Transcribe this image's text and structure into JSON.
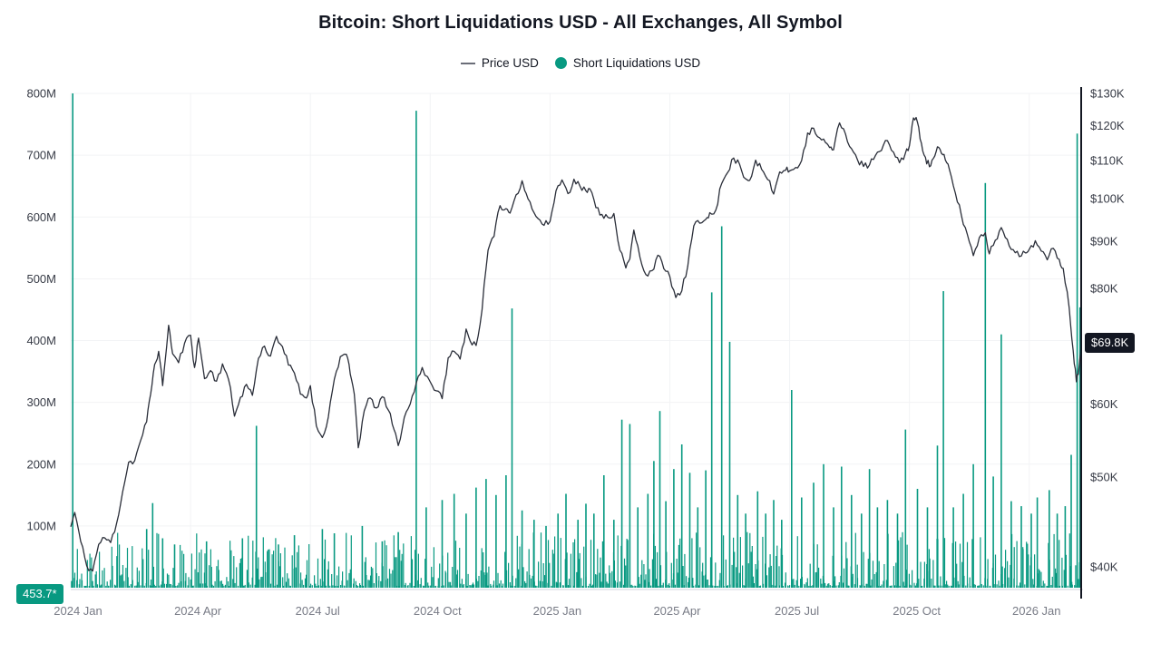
{
  "title": "Bitcoin: Short Liquidations USD - All Exchanges, All Symbol",
  "legend": {
    "items": [
      {
        "label": "Price USD",
        "glyph": "line",
        "color": "#6a6d78"
      },
      {
        "label": "Short Liquidations USD",
        "glyph": "dot",
        "color": "#089981"
      }
    ]
  },
  "badges": {
    "last_price": "$69.8K",
    "last_liquidation": "453.7*"
  },
  "colors": {
    "liquidation_green": "#089981",
    "price_line_dark": "#2a2e39",
    "badge_dark": "#131722",
    "axis_text": "#363a45",
    "x_text": "#787b86",
    "grid": "#f2f3f5"
  },
  "chart_data": {
    "type": "mixed",
    "title": "Bitcoin: Short Liquidations USD - All Exchanges, All Symbol",
    "x_axis": {
      "span_months": 25.3,
      "origin": "2024 Jan",
      "ticks": [
        {
          "m": 0,
          "label": "2024 Jan"
        },
        {
          "m": 3,
          "label": "2024 Apr"
        },
        {
          "m": 6,
          "label": "2024 Jul"
        },
        {
          "m": 9,
          "label": "2024 Oct"
        },
        {
          "m": 12,
          "label": "2025 Jan"
        },
        {
          "m": 15,
          "label": "2025 Apr"
        },
        {
          "m": 18,
          "label": "2025 Jul"
        },
        {
          "m": 21,
          "label": "2025 Oct"
        },
        {
          "m": 24,
          "label": "2026 Jan"
        }
      ]
    },
    "y_left": {
      "scale": "linear",
      "min": 0,
      "max": 800,
      "unit": "M USD",
      "ticks": [
        {
          "v": 100,
          "label": "100M"
        },
        {
          "v": 200,
          "label": "200M"
        },
        {
          "v": 300,
          "label": "300M"
        },
        {
          "v": 400,
          "label": "400M"
        },
        {
          "v": 500,
          "label": "500M"
        },
        {
          "v": 600,
          "label": "600M"
        },
        {
          "v": 700,
          "label": "700M"
        },
        {
          "v": 800,
          "label": "800M"
        }
      ]
    },
    "y_right": {
      "scale": "log",
      "min": 40,
      "max": 130,
      "unit": "K USD",
      "ticks": [
        {
          "v": 130,
          "label": "$130K"
        },
        {
          "v": 120,
          "label": "$120K"
        },
        {
          "v": 110,
          "label": "$110K"
        },
        {
          "v": 100,
          "label": "$100K"
        },
        {
          "v": 90,
          "label": "$90K"
        },
        {
          "v": 80,
          "label": "$80K"
        },
        {
          "v": 60,
          "label": "$60K"
        },
        {
          "v": 50,
          "label": "$50K"
        },
        {
          "v": 40,
          "label": "$40K"
        }
      ]
    },
    "series": [
      {
        "name": "Price USD",
        "type": "line",
        "axis": "right",
        "color": "#2a2e39",
        "last_value": 69.8,
        "last_value_label": "$69.8K",
        "points": [
          [
            0,
            44.2
          ],
          [
            0.1,
            45.8
          ],
          [
            0.25,
            42.6
          ],
          [
            0.4,
            40.1
          ],
          [
            0.55,
            39.6
          ],
          [
            0.7,
            42.3
          ],
          [
            0.85,
            43.0
          ],
          [
            1.0,
            42.5
          ],
          [
            1.15,
            44.6
          ],
          [
            1.3,
            48.2
          ],
          [
            1.45,
            51.9
          ],
          [
            1.6,
            52.1
          ],
          [
            1.75,
            54.8
          ],
          [
            1.9,
            57.4
          ],
          [
            2.0,
            61.5
          ],
          [
            2.1,
            66.2
          ],
          [
            2.2,
            68.4
          ],
          [
            2.3,
            62.8
          ],
          [
            2.45,
            73.0
          ],
          [
            2.55,
            68.0
          ],
          [
            2.7,
            66.5
          ],
          [
            2.85,
            69.8
          ],
          [
            3.0,
            71.2
          ],
          [
            3.1,
            65.7
          ],
          [
            3.2,
            70.7
          ],
          [
            3.35,
            63.9
          ],
          [
            3.5,
            65.2
          ],
          [
            3.65,
            63.5
          ],
          [
            3.8,
            66.3
          ],
          [
            3.95,
            63.8
          ],
          [
            4.1,
            58.2
          ],
          [
            4.25,
            61.0
          ],
          [
            4.4,
            63.0
          ],
          [
            4.55,
            61.3
          ],
          [
            4.7,
            67.2
          ],
          [
            4.85,
            69.3
          ],
          [
            5.0,
            67.6
          ],
          [
            5.15,
            71.0
          ],
          [
            5.3,
            69.2
          ],
          [
            5.45,
            66.1
          ],
          [
            5.6,
            64.8
          ],
          [
            5.75,
            61.5
          ],
          [
            5.9,
            60.9
          ],
          [
            6.0,
            62.8
          ],
          [
            6.15,
            56.8
          ],
          [
            6.3,
            55.2
          ],
          [
            6.45,
            58.1
          ],
          [
            6.6,
            63.8
          ],
          [
            6.75,
            67.5
          ],
          [
            6.9,
            67.9
          ],
          [
            7.0,
            64.6
          ],
          [
            7.1,
            61.5
          ],
          [
            7.2,
            53.8
          ],
          [
            7.35,
            59.0
          ],
          [
            7.5,
            60.9
          ],
          [
            7.65,
            59.4
          ],
          [
            7.8,
            61.1
          ],
          [
            7.95,
            59.1
          ],
          [
            8.1,
            56.2
          ],
          [
            8.2,
            54.1
          ],
          [
            8.35,
            58.0
          ],
          [
            8.5,
            60.0
          ],
          [
            8.65,
            63.2
          ],
          [
            8.8,
            65.7
          ],
          [
            9.0,
            63.4
          ],
          [
            9.15,
            62.0
          ],
          [
            9.3,
            60.8
          ],
          [
            9.45,
            67.3
          ],
          [
            9.6,
            68.4
          ],
          [
            9.75,
            67.1
          ],
          [
            9.9,
            72.3
          ],
          [
            10.0,
            70.2
          ],
          [
            10.15,
            69.4
          ],
          [
            10.3,
            75.9
          ],
          [
            10.45,
            88.0
          ],
          [
            10.6,
            91.1
          ],
          [
            10.75,
            98.3
          ],
          [
            10.9,
            97.6
          ],
          [
            11.0,
            96.5
          ],
          [
            11.15,
            101.0
          ],
          [
            11.3,
            104.6
          ],
          [
            11.4,
            101.4
          ],
          [
            11.55,
            97.5
          ],
          [
            11.7,
            95.2
          ],
          [
            11.85,
            93.6
          ],
          [
            12.0,
            94.5
          ],
          [
            12.15,
            102.0
          ],
          [
            12.3,
            104.8
          ],
          [
            12.45,
            101.3
          ],
          [
            12.6,
            105.0
          ],
          [
            12.75,
            103.2
          ],
          [
            12.9,
            102.0
          ],
          [
            13.0,
            102.5
          ],
          [
            13.15,
            97.8
          ],
          [
            13.3,
            96.2
          ],
          [
            13.45,
            95.5
          ],
          [
            13.6,
            96.4
          ],
          [
            13.75,
            88.0
          ],
          [
            13.9,
            84.2
          ],
          [
            14.0,
            86.1
          ],
          [
            14.1,
            92.5
          ],
          [
            14.25,
            86.5
          ],
          [
            14.4,
            82.8
          ],
          [
            14.55,
            83.6
          ],
          [
            14.7,
            86.9
          ],
          [
            14.85,
            84.0
          ],
          [
            15.0,
            82.4
          ],
          [
            15.15,
            78.2
          ],
          [
            15.3,
            79.5
          ],
          [
            15.45,
            84.6
          ],
          [
            15.6,
            93.5
          ],
          [
            15.75,
            94.1
          ],
          [
            15.9,
            95.0
          ],
          [
            16.0,
            96.6
          ],
          [
            16.15,
            97.2
          ],
          [
            16.3,
            103.9
          ],
          [
            16.45,
            106.8
          ],
          [
            16.6,
            110.7
          ],
          [
            16.75,
            108.9
          ],
          [
            16.9,
            105.1
          ],
          [
            17.0,
            104.7
          ],
          [
            17.15,
            110.1
          ],
          [
            17.3,
            107.6
          ],
          [
            17.45,
            104.9
          ],
          [
            17.6,
            101.2
          ],
          [
            17.75,
            106.9
          ],
          [
            17.9,
            107.4
          ],
          [
            18.0,
            107.2
          ],
          [
            18.15,
            108.1
          ],
          [
            18.3,
            110.0
          ],
          [
            18.45,
            117.8
          ],
          [
            18.6,
            119.2
          ],
          [
            18.75,
            116.4
          ],
          [
            18.9,
            115.0
          ],
          [
            19.0,
            113.6
          ],
          [
            19.1,
            113.0
          ],
          [
            19.25,
            120.8
          ],
          [
            19.4,
            117.5
          ],
          [
            19.55,
            113.3
          ],
          [
            19.7,
            110.2
          ],
          [
            19.85,
            108.4
          ],
          [
            20.0,
            108.8
          ],
          [
            20.15,
            111.4
          ],
          [
            20.3,
            112.8
          ],
          [
            20.45,
            115.6
          ],
          [
            20.6,
            112.3
          ],
          [
            20.75,
            109.4
          ],
          [
            20.9,
            112.1
          ],
          [
            21.0,
            114.2
          ],
          [
            21.1,
            122.3
          ],
          [
            21.2,
            121.0
          ],
          [
            21.3,
            114.8
          ],
          [
            21.4,
            110.9
          ],
          [
            21.5,
            108.3
          ],
          [
            21.6,
            110.6
          ],
          [
            21.7,
            113.8
          ],
          [
            21.8,
            112.0
          ],
          [
            21.9,
            110.1
          ],
          [
            22.0,
            107.6
          ],
          [
            22.15,
            101.4
          ],
          [
            22.3,
            96.0
          ],
          [
            22.45,
            91.5
          ],
          [
            22.6,
            86.8
          ],
          [
            22.75,
            90.8
          ],
          [
            22.9,
            91.9
          ],
          [
            23.0,
            87.2
          ],
          [
            23.15,
            90.2
          ],
          [
            23.3,
            93.1
          ],
          [
            23.45,
            90.4
          ],
          [
            23.6,
            88.1
          ],
          [
            23.75,
            86.6
          ],
          [
            23.9,
            87.4
          ],
          [
            24.0,
            88.2
          ],
          [
            24.15,
            90.1
          ],
          [
            24.3,
            87.8
          ],
          [
            24.45,
            85.9
          ],
          [
            24.6,
            88.4
          ],
          [
            24.75,
            86.0
          ],
          [
            24.85,
            84.1
          ],
          [
            25.0,
            76.2
          ],
          [
            25.1,
            68.5
          ],
          [
            25.18,
            63.4
          ],
          [
            25.25,
            66.0
          ],
          [
            25.3,
            69.8
          ]
        ]
      },
      {
        "name": "Short Liquidations USD",
        "type": "bar",
        "axis": "left",
        "color": "#089981",
        "last_value": 453.7,
        "last_value_label": "453.7*",
        "spikes": [
          [
            0.05,
            805
          ],
          [
            1.9,
            95
          ],
          [
            2.05,
            137
          ],
          [
            2.3,
            80
          ],
          [
            2.6,
            70
          ],
          [
            3.4,
            75
          ],
          [
            4.3,
            80
          ],
          [
            4.65,
            262
          ],
          [
            5.2,
            70
          ],
          [
            5.6,
            85
          ],
          [
            6.3,
            95
          ],
          [
            6.6,
            88
          ],
          [
            7.3,
            100
          ],
          [
            7.8,
            75
          ],
          [
            8.2,
            90
          ],
          [
            8.65,
            772
          ],
          [
            8.9,
            130
          ],
          [
            9.3,
            142
          ],
          [
            9.6,
            152
          ],
          [
            9.9,
            120
          ],
          [
            10.15,
            162
          ],
          [
            10.4,
            176
          ],
          [
            10.65,
            150
          ],
          [
            10.9,
            182
          ],
          [
            11.05,
            452
          ],
          [
            11.3,
            125
          ],
          [
            11.6,
            110
          ],
          [
            11.9,
            100
          ],
          [
            12.2,
            120
          ],
          [
            12.4,
            152
          ],
          [
            12.7,
            110
          ],
          [
            12.9,
            136
          ],
          [
            13.1,
            120
          ],
          [
            13.35,
            182
          ],
          [
            13.6,
            110
          ],
          [
            13.8,
            272
          ],
          [
            14.0,
            265
          ],
          [
            14.2,
            130
          ],
          [
            14.45,
            152
          ],
          [
            14.6,
            205
          ],
          [
            14.75,
            286
          ],
          [
            14.9,
            140
          ],
          [
            15.1,
            192
          ],
          [
            15.3,
            232
          ],
          [
            15.5,
            186
          ],
          [
            15.7,
            130
          ],
          [
            15.9,
            190
          ],
          [
            16.05,
            478
          ],
          [
            16.3,
            585
          ],
          [
            16.5,
            398
          ],
          [
            16.7,
            150
          ],
          [
            16.9,
            120
          ],
          [
            17.2,
            156
          ],
          [
            17.4,
            120
          ],
          [
            17.6,
            142
          ],
          [
            17.8,
            110
          ],
          [
            18.05,
            320
          ],
          [
            18.3,
            146
          ],
          [
            18.6,
            170
          ],
          [
            18.85,
            200
          ],
          [
            19.1,
            130
          ],
          [
            19.3,
            196
          ],
          [
            19.55,
            150
          ],
          [
            19.8,
            120
          ],
          [
            20.0,
            192
          ],
          [
            20.2,
            130
          ],
          [
            20.45,
            142
          ],
          [
            20.7,
            120
          ],
          [
            20.9,
            256
          ],
          [
            21.2,
            160
          ],
          [
            21.45,
            130
          ],
          [
            21.7,
            230
          ],
          [
            21.85,
            480
          ],
          [
            22.1,
            130
          ],
          [
            22.35,
            152
          ],
          [
            22.6,
            200
          ],
          [
            22.9,
            655
          ],
          [
            23.1,
            180
          ],
          [
            23.3,
            410
          ],
          [
            23.55,
            140
          ],
          [
            23.8,
            132
          ],
          [
            24.05,
            120
          ],
          [
            24.2,
            146
          ],
          [
            24.5,
            158
          ],
          [
            24.7,
            120
          ],
          [
            24.9,
            132
          ],
          [
            25.05,
            215
          ],
          [
            25.2,
            735
          ],
          [
            25.27,
            453.7
          ]
        ],
        "background_bars": {
          "seed": 42,
          "count": 800,
          "min": 3,
          "max": 90,
          "exponent": 3
        }
      }
    ]
  }
}
